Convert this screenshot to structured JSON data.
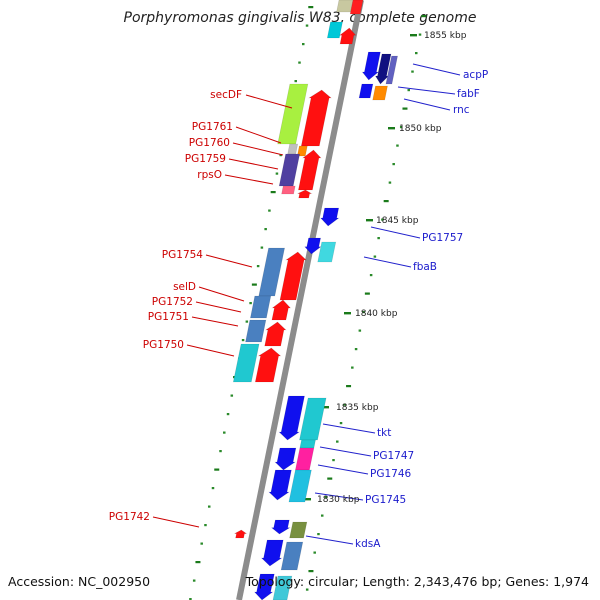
{
  "title": "Porphyromonas gingivalis W83, complete genome",
  "footer": {
    "accession": "Accession: NC_002950",
    "topology": "Topology: circular; Length: 2,343,476 bp; Genes: 1,974"
  },
  "scale_labels": [
    "1855 kbp",
    "1850 kbp",
    "1845 kbp",
    "1840 kbp",
    "1835 kbp",
    "1830 kbp"
  ],
  "colors": {
    "backbone": "#8c8c8c",
    "tick_major": "#1a7a1a",
    "tick_minor": "#2a8a2a",
    "left_label": "#cc0000",
    "right_label": "#1a1acc",
    "label_line_left": "#cc0000",
    "label_line_right": "#2222cc"
  },
  "left_gene_labels": [
    "secDF",
    "PG1761",
    "PG1760",
    "PG1759",
    "rpsO",
    "PG1754",
    "selD",
    "PG1752",
    "PG1751",
    "PG1750",
    "PG1742"
  ],
  "right_gene_labels": [
    "acpP",
    "fabF",
    "rnc",
    "PG1757",
    "fbaB",
    "tkt",
    "PG1747",
    "PG1746",
    "PG1745",
    "kdsA"
  ]
}
